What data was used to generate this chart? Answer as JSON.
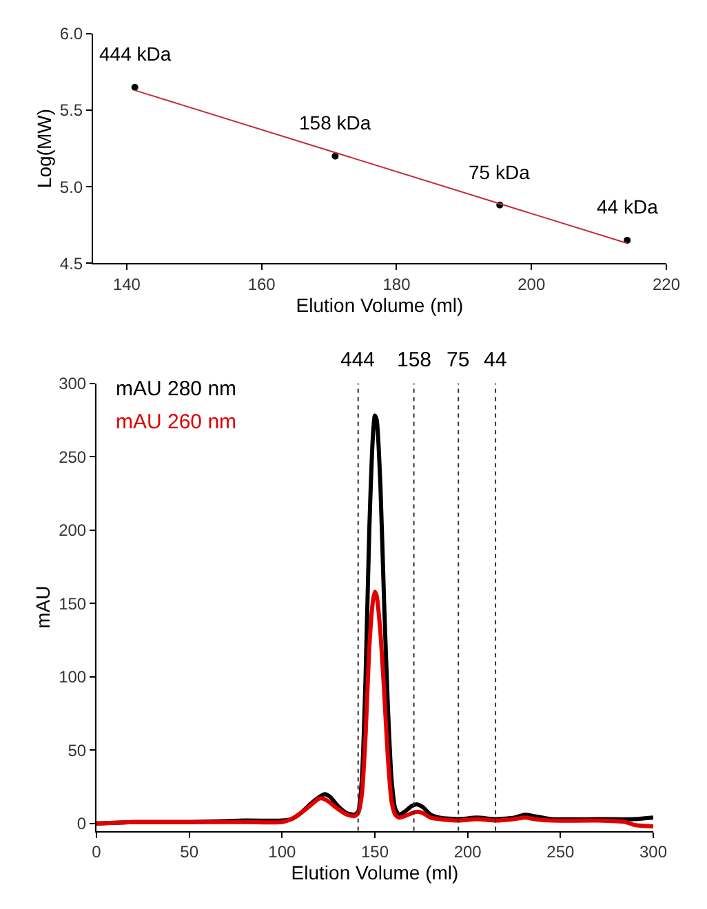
{
  "chart_data": [
    {
      "type": "scatter",
      "xlabel": "Elution Volume (ml)",
      "ylabel": "Log(MW)",
      "xlim": [
        135,
        220
      ],
      "xticks": [
        140,
        160,
        180,
        200,
        220
      ],
      "ylim": [
        4.5,
        6.0
      ],
      "yticks": [
        {
          "value": 4.5,
          "label": "4.5"
        },
        {
          "value": 5.0,
          "label": "5.0"
        },
        {
          "value": 5.5,
          "label": "5.5"
        },
        {
          "value": 6.0,
          "label": "6.0"
        }
      ],
      "legend": false,
      "marker": "circle",
      "series": [
        {
          "color": "#000000",
          "x": [
            141.2,
            170.9,
            195.3,
            214.2
          ],
          "values": [
            5.65,
            5.2,
            4.88,
            4.65
          ]
        },
        {
          "type": "line",
          "color": "#c0303a",
          "marker": "none",
          "x": [
            141.2,
            214.2
          ],
          "values": [
            5.63,
            4.63
          ]
        }
      ],
      "annotations": [
        {
          "text": "444 kDa",
          "x": 141.2,
          "y": 5.65
        },
        {
          "text": "158 kDa",
          "x": 170.9,
          "y": 5.2
        },
        {
          "text": "75 kDa",
          "x": 195.3,
          "y": 4.88
        },
        {
          "text": "44 kDa",
          "x": 214.2,
          "y": 4.65
        }
      ]
    },
    {
      "type": "line",
      "xlabel": "Elution Volume (ml)",
      "ylabel": "mAU",
      "xlim": [
        0,
        300
      ],
      "xticks": [
        0,
        50,
        100,
        150,
        200,
        250,
        300
      ],
      "ylim": [
        -5,
        300
      ],
      "yticks": [
        0,
        50,
        100,
        150,
        200,
        250,
        300
      ],
      "legend": "top left",
      "line_style": "solid",
      "series": [
        {
          "name": "mAU 280 nm",
          "color": "#000000",
          "x": [
            0,
            20,
            50,
            80,
            100,
            105,
            110,
            115,
            120,
            123,
            126,
            130,
            135,
            139,
            141,
            143,
            145,
            147,
            149,
            150,
            151,
            153,
            155,
            157,
            159,
            161,
            163,
            166,
            170,
            173,
            176,
            180,
            185,
            195,
            205,
            215,
            225,
            231,
            236,
            245,
            270,
            290,
            300
          ],
          "values": [
            0,
            1,
            1,
            2,
            2,
            3,
            7,
            13,
            18,
            20,
            18,
            12,
            7,
            6,
            8,
            30,
            100,
            200,
            265,
            278,
            275,
            230,
            150,
            80,
            30,
            10,
            6,
            8,
            12,
            13,
            11,
            6,
            4,
            3,
            4,
            3,
            4,
            6,
            5,
            3,
            3,
            3,
            4
          ]
        },
        {
          "name": "mAU 260 nm",
          "color": "#e00000",
          "x": [
            0,
            20,
            50,
            80,
            100,
            105,
            110,
            115,
            120,
            122,
            125,
            130,
            135,
            139,
            141,
            143,
            145,
            147,
            149,
            150,
            151,
            153,
            155,
            157,
            159,
            161,
            163,
            166,
            170,
            173,
            176,
            180,
            185,
            195,
            205,
            215,
            225,
            231,
            236,
            245,
            270,
            285,
            290,
            300
          ],
          "values": [
            0,
            1,
            1,
            1,
            1,
            3,
            7,
            12,
            17,
            17,
            15,
            10,
            6,
            5,
            7,
            20,
            60,
            120,
            152,
            158,
            155,
            130,
            90,
            45,
            15,
            6,
            4,
            5,
            7,
            8,
            7,
            4,
            3,
            2,
            3,
            2,
            3,
            4,
            3,
            2,
            2,
            1,
            -1,
            -2
          ]
        }
      ],
      "ref_lines": [
        {
          "axis": "x",
          "value": 141,
          "line_style": "dotted",
          "color": "#333333"
        },
        {
          "axis": "x",
          "value": 171,
          "line_style": "dotted",
          "color": "#333333"
        },
        {
          "axis": "x",
          "value": 195,
          "line_style": "dotted",
          "color": "#333333"
        },
        {
          "axis": "x",
          "value": 215,
          "line_style": "dotted",
          "color": "#333333"
        }
      ],
      "annotations": [
        "444",
        "158",
        "75",
        "44"
      ]
    }
  ]
}
